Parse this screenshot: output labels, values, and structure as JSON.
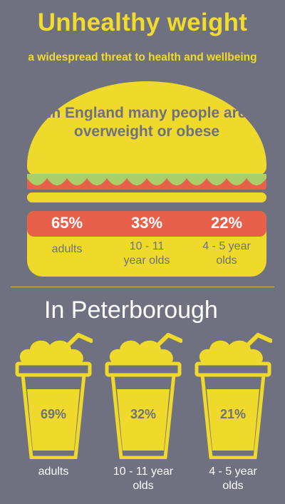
{
  "header": {
    "title": "Unhealthy weight",
    "subtitle": "a widespread threat to health and wellbeing"
  },
  "england": {
    "heading": "In England many people are overweight or obese",
    "stats": [
      {
        "value": "65%",
        "label": "adults"
      },
      {
        "value": "33%",
        "label": "10 - 11 year olds"
      },
      {
        "value": "22%",
        "label": "4 - 5 year olds"
      }
    ]
  },
  "peterborough": {
    "heading": "In Peterborough",
    "stats": [
      {
        "value": "69%",
        "label": "adults"
      },
      {
        "value": "32%",
        "label": "10 - 11 year olds"
      },
      {
        "value": "21%",
        "label": "4 - 5 year olds"
      }
    ]
  },
  "colors": {
    "background": "#6f7080",
    "yellow": "#efd92b",
    "tomato": "#e9604a",
    "lettuce": "#a8cf6a"
  }
}
